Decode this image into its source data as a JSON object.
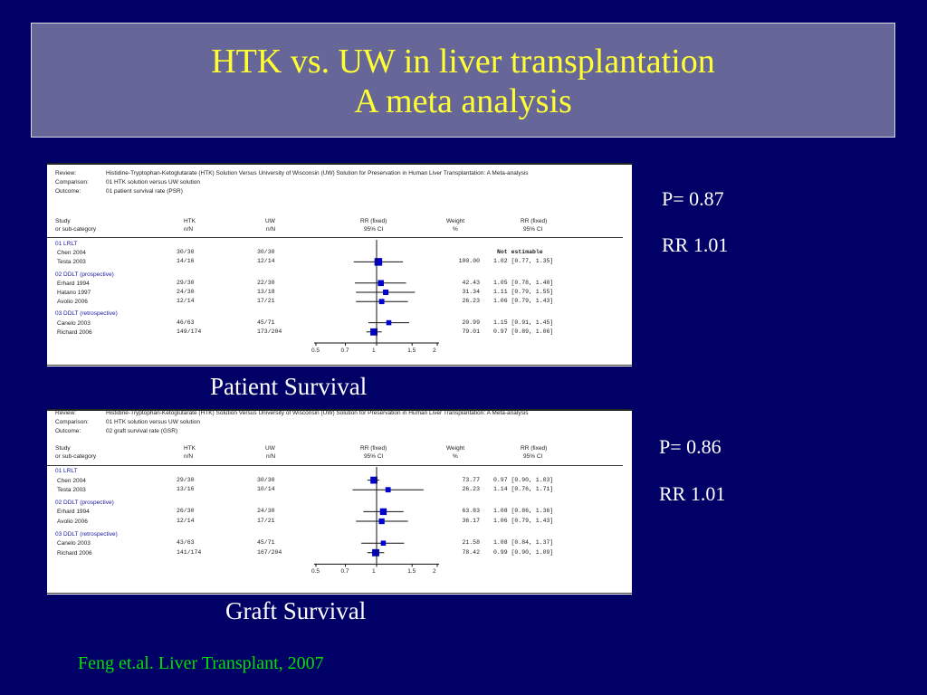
{
  "slide": {
    "title_line1": "HTK vs. UW in liver transplantation",
    "title_line2": "A meta analysis",
    "citation": "Feng et.al. Liver Transplant, 2007"
  },
  "panels": [
    {
      "caption": "Patient Survival",
      "stat_p": "P= 0.87",
      "stat_rr": "RR 1.01",
      "review_label": "Review:",
      "review_text": "Histidine-Tryptophan-Ketoglutarate (HTK) Solution Versus University of Wisconsin (UW) Solution for Preservation in Human Liver Transplantation: A Meta-analysis",
      "comparison_label": "Comparison:",
      "comparison_text": "01 HTK solution versus UW solution",
      "outcome_label": "Outcome:",
      "outcome_text": "01 patient survival rate (PSR)",
      "col_study": "Study",
      "col_study2": "or sub-category",
      "col_htk": "HTK",
      "col_htk2": "n/N",
      "col_uw": "UW",
      "col_uw2": "n/N",
      "col_rr": "RR (fixed)",
      "col_rr2": "95% CI",
      "col_weight": "Weight",
      "col_weight2": "%",
      "col_rrci": "RR (fixed)",
      "col_rrci2": "95% CI",
      "axis_ticks": [
        "0.5",
        "0.7",
        "1",
        "1.5",
        "2"
      ],
      "groups": [
        {
          "label": "01 LRLT",
          "studies": [
            {
              "name": "Chen 2004",
              "htk": "30/30",
              "uw": "30/30",
              "weight": "",
              "rrci": "Not estimable",
              "rr": null,
              "lo": null,
              "hi": null,
              "w": 0
            },
            {
              "name": "Testa 2003",
              "htk": "14/16",
              "uw": "12/14",
              "weight": "100.00",
              "rrci": "1.02 [0.77, 1.35]",
              "rr": 1.02,
              "lo": 0.77,
              "hi": 1.35,
              "w": 100
            }
          ]
        },
        {
          "label": "02 DDLT (prospective)",
          "studies": [
            {
              "name": "Erhard 1994",
              "htk": "29/30",
              "uw": "22/30",
              "weight": "42.43",
              "rrci": "1.05 [0.78, 1.40]",
              "rr": 1.05,
              "lo": 0.78,
              "hi": 1.4,
              "w": 42.43
            },
            {
              "name": "Hatano 1997",
              "htk": "24/30",
              "uw": "13/18",
              "weight": "31.34",
              "rrci": "1.11 [0.79, 1.55]",
              "rr": 1.11,
              "lo": 0.79,
              "hi": 1.55,
              "w": 31.34
            },
            {
              "name": "Avolio 2006",
              "htk": "12/14",
              "uw": "17/21",
              "weight": "26.23",
              "rrci": "1.06 [0.79, 1.43]",
              "rr": 1.06,
              "lo": 0.79,
              "hi": 1.43,
              "w": 26.23
            }
          ]
        },
        {
          "label": "03 DDLT (retrospective)",
          "studies": [
            {
              "name": "Canelo 2003",
              "htk": "46/63",
              "uw": "45/71",
              "weight": "20.99",
              "rrci": "1.15 [0.91, 1.45]",
              "rr": 1.15,
              "lo": 0.91,
              "hi": 1.45,
              "w": 20.99
            },
            {
              "name": "Richard 2006",
              "htk": "149/174",
              "uw": "173/204",
              "weight": "79.01",
              "rrci": "0.97 [0.89, 1.06]",
              "rr": 0.97,
              "lo": 0.89,
              "hi": 1.06,
              "w": 79.01
            }
          ]
        }
      ]
    },
    {
      "caption": "Graft Survival",
      "stat_p": "P= 0.86",
      "stat_rr": "RR 1.01",
      "review_label": "Review:",
      "review_text": "Histidine-Tryptophan-Ketoglutarate (HTK) Solution Versus University of Wisconsin (UW) Solution for Preservation in Human Liver Transplantation: A Meta-analysis",
      "comparison_label": "Comparison:",
      "comparison_text": "01 HTK solution versus UW solution",
      "outcome_label": "Outcome:",
      "outcome_text": "02 graft survival rate (GSR)",
      "col_study": "Study",
      "col_study2": "or sub-category",
      "col_htk": "HTK",
      "col_htk2": "n/N",
      "col_uw": "UW",
      "col_uw2": "n/N",
      "col_rr": "RR (fixed)",
      "col_rr2": "95% CI",
      "col_weight": "Weight",
      "col_weight2": "%",
      "col_rrci": "RR (fixed)",
      "col_rrci2": "95% CI",
      "axis_ticks": [
        "0.5",
        "0.7",
        "1",
        "1.5",
        "2"
      ],
      "groups": [
        {
          "label": "01 LRLT",
          "studies": [
            {
              "name": "Chen 2004",
              "htk": "29/30",
              "uw": "30/30",
              "weight": "73.77",
              "rrci": "0.97 [0.90, 1.03]",
              "rr": 0.97,
              "lo": 0.9,
              "hi": 1.03,
              "w": 73.77
            },
            {
              "name": "Testa 2003",
              "htk": "13/16",
              "uw": "10/14",
              "weight": "26.23",
              "rrci": "1.14 [0.76, 1.71]",
              "rr": 1.14,
              "lo": 0.76,
              "hi": 1.71,
              "w": 26.23
            }
          ]
        },
        {
          "label": "02 DDLT (prospective)",
          "studies": [
            {
              "name": "Erhard 1994",
              "htk": "26/30",
              "uw": "24/30",
              "weight": "63.83",
              "rrci": "1.08 [0.86, 1.36]",
              "rr": 1.08,
              "lo": 0.86,
              "hi": 1.36,
              "w": 63.83
            },
            {
              "name": "Avolio 2006",
              "htk": "12/14",
              "uw": "17/21",
              "weight": "36.17",
              "rrci": "1.06 [0.79, 1.43]",
              "rr": 1.06,
              "lo": 0.79,
              "hi": 1.43,
              "w": 36.17
            }
          ]
        },
        {
          "label": "03 DDLT (retrospective)",
          "studies": [
            {
              "name": "Canelo 2003",
              "htk": "43/63",
              "uw": "45/71",
              "weight": "21.58",
              "rrci": "1.08 [0.84, 1.37]",
              "rr": 1.08,
              "lo": 0.84,
              "hi": 1.37,
              "w": 21.58
            },
            {
              "name": "Richard 2006",
              "htk": "141/174",
              "uw": "167/204",
              "weight": "78.42",
              "rrci": "0.99 [0.90, 1.09]",
              "rr": 0.99,
              "lo": 0.9,
              "hi": 1.09,
              "w": 78.42
            }
          ]
        }
      ]
    }
  ],
  "colors": {
    "background": "#000066",
    "title_box": "#666699",
    "title_text": "#ffff33",
    "marker": "#0000cc",
    "citation": "#00e000"
  }
}
